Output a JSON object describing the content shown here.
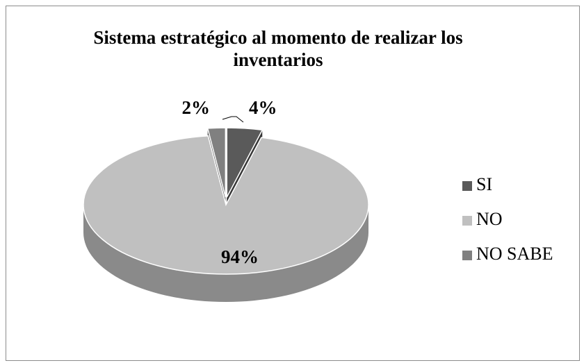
{
  "chart_data": {
    "type": "pie",
    "title": "Sistema estratégico al momento de realizar los inventarios",
    "categories": [
      "SI",
      "NO",
      "NO SABE"
    ],
    "values": [
      4,
      94,
      2
    ],
    "value_labels": [
      "4%",
      "94%",
      "2%"
    ],
    "colors": [
      "#5a5a5a",
      "#c0c0c0",
      "#808080"
    ],
    "legend": "right"
  }
}
